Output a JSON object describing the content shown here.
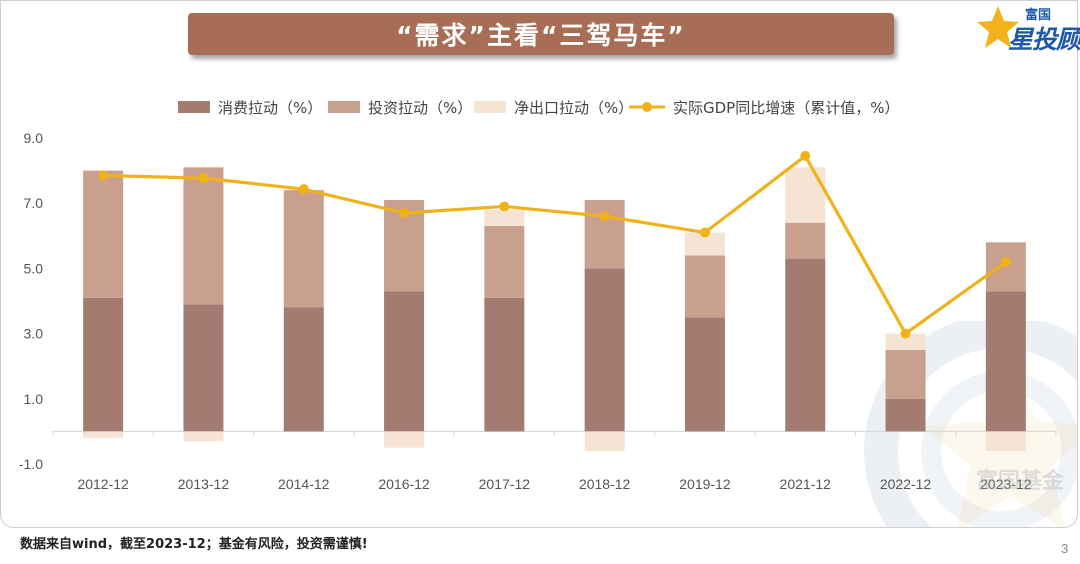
{
  "header": {
    "title": "“需求”主看“三驾马车”"
  },
  "logo": {
    "small_text": "富国",
    "big_text": "星投顾",
    "icon": "star-icon",
    "brand_color": "#1e5aa8",
    "star_color": "#f2b21b"
  },
  "watermark": {
    "text": "富国基金"
  },
  "footer": {
    "note": "数据来自wind，截至2023-12；基金有风险，投资需谨慎!",
    "page_number": "3"
  },
  "chart_data": {
    "type": "bar",
    "stacked": true,
    "categories": [
      "2012-12",
      "2013-12",
      "2014-12",
      "2016-12",
      "2017-12",
      "2018-12",
      "2019-12",
      "2021-12",
      "2022-12",
      "2023-12"
    ],
    "series": [
      {
        "name": "消费拉动（%）",
        "type": "bar",
        "color": "#a47b71",
        "values": [
          4.1,
          3.9,
          3.8,
          4.3,
          4.1,
          5.0,
          3.5,
          5.3,
          1.0,
          4.3
        ]
      },
      {
        "name": "投资拉动（%）",
        "type": "bar",
        "color": "#c9a08e",
        "values": [
          3.9,
          4.2,
          3.6,
          2.8,
          2.2,
          2.1,
          1.9,
          1.1,
          1.5,
          1.5
        ]
      },
      {
        "name": "净出口拉动（%）",
        "type": "bar",
        "color": "#f5e3d4",
        "values": [
          -0.2,
          -0.3,
          0.0,
          -0.5,
          0.5,
          -0.6,
          0.7,
          1.7,
          0.5,
          -0.6
        ]
      },
      {
        "name": "实际GDP同比增速（累计值，%）",
        "type": "line",
        "color": "#f0b21b",
        "values": [
          7.85,
          7.77,
          7.43,
          6.7,
          6.9,
          6.6,
          6.1,
          8.45,
          3.0,
          5.2
        ]
      }
    ],
    "yticks": [
      "9.0",
      "7.0",
      "5.0",
      "3.0",
      "1.0",
      "-1.0"
    ],
    "ylim": [
      -1.0,
      9.0
    ],
    "legend_position": "top",
    "grid": false
  }
}
